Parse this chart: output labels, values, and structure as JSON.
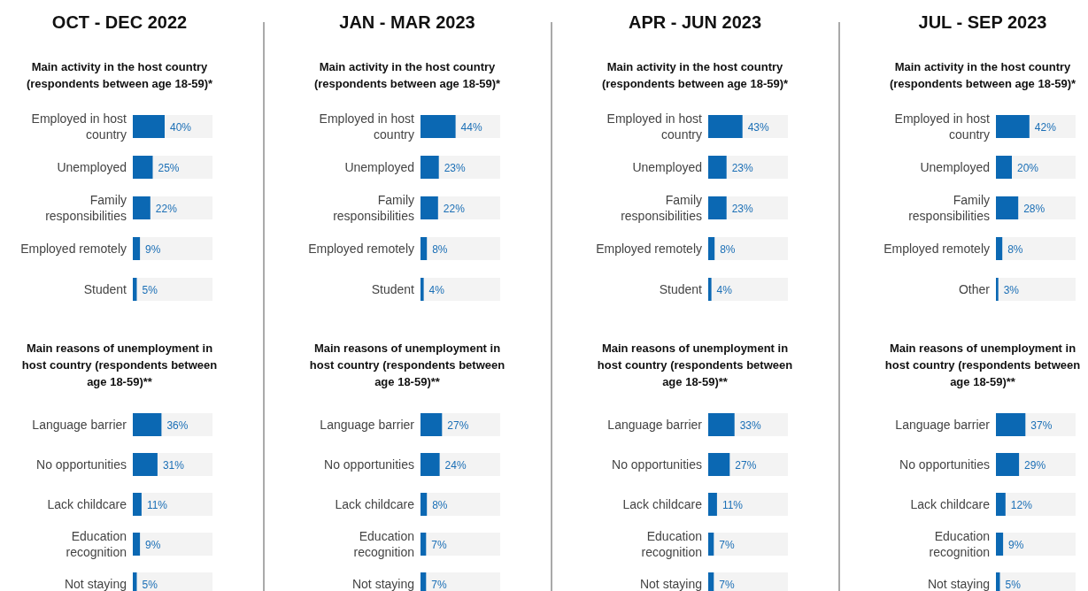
{
  "chart_data": [
    {
      "type": "bar",
      "orientation": "horizontal",
      "title": "OCT - DEC 2022",
      "subtitle": "Main activity in the host country (respondents between age 18-59)*",
      "categories": [
        "Employed in host country",
        "Unemployed",
        "Family responsibilities",
        "Employed remotely",
        "Student"
      ],
      "values": [
        40,
        25,
        22,
        9,
        5
      ],
      "value_labels": [
        "40%",
        "25%",
        "22%",
        "9%",
        "5%"
      ],
      "color": "#0b68b3",
      "xlim": [
        0,
        100
      ],
      "tick_labels": "y"
    },
    {
      "type": "bar",
      "orientation": "horizontal",
      "title": "JAN - MAR 2023",
      "subtitle": "Main activity in the host country (respondents between age 18-59)*",
      "categories": [
        "Employed in host country",
        "Unemployed",
        "Family responsibilities",
        "Employed remotely",
        "Student"
      ],
      "values": [
        44,
        23,
        22,
        8,
        4
      ],
      "value_labels": [
        "44%",
        "23%",
        "22%",
        "8%",
        "4%"
      ],
      "color": "#0b68b3",
      "xlim": [
        0,
        100
      ],
      "tick_labels": "y"
    },
    {
      "type": "bar",
      "orientation": "horizontal",
      "title": "APR - JUN 2023",
      "subtitle": "Main activity in the host country (respondents between age 18-59)*",
      "categories": [
        "Employed in host country",
        "Unemployed",
        "Family responsibilities",
        "Employed remotely",
        "Student"
      ],
      "values": [
        43,
        23,
        23,
        8,
        4
      ],
      "value_labels": [
        "43%",
        "23%",
        "23%",
        "8%",
        "4%"
      ],
      "color": "#0b68b3",
      "xlim": [
        0,
        100
      ],
      "tick_labels": "y"
    },
    {
      "type": "bar",
      "orientation": "horizontal",
      "title": "JUL - SEP 2023",
      "subtitle": "Main activity in the host country (respondents between age 18-59)*",
      "categories": [
        "Employed in host country",
        "Unemployed",
        "Family responsibilities",
        "Employed remotely",
        "Other"
      ],
      "values": [
        42,
        20,
        28,
        8,
        3
      ],
      "value_labels": [
        "42%",
        "20%",
        "28%",
        "8%",
        "3%"
      ],
      "color": "#0b68b3",
      "xlim": [
        0,
        100
      ],
      "tick_labels": "y"
    },
    {
      "type": "bar",
      "orientation": "horizontal",
      "title": "Main reasons of unemployment in host country (respondents between age 18-59)**",
      "categories": [
        "Language barrier",
        "No opportunities",
        "Lack childcare",
        "Education recognition",
        "Not staying"
      ],
      "values": [
        36,
        31,
        11,
        9,
        5
      ],
      "value_labels": [
        "36%",
        "31%",
        "11%",
        "9%",
        "5%"
      ],
      "color": "#0b68b3",
      "xlim": [
        0,
        100
      ],
      "tick_labels": "y"
    },
    {
      "type": "bar",
      "orientation": "horizontal",
      "title": "Main reasons of unemployment in host country (respondents between age 18-59)**",
      "categories": [
        "Language barrier",
        "No opportunities",
        "Lack childcare",
        "Education recognition",
        "Not staying"
      ],
      "values": [
        27,
        24,
        8,
        7,
        7
      ],
      "value_labels": [
        "27%",
        "24%",
        "8%",
        "7%",
        "7%"
      ],
      "color": "#0b68b3",
      "xlim": [
        0,
        100
      ],
      "tick_labels": "y"
    },
    {
      "type": "bar",
      "orientation": "horizontal",
      "title": "Main reasons of unemployment in host country (respondents between age 18-59)**",
      "categories": [
        "Language barrier",
        "No opportunities",
        "Lack childcare",
        "Education recognition",
        "Not staying"
      ],
      "values": [
        33,
        27,
        11,
        7,
        7
      ],
      "value_labels": [
        "33%",
        "27%",
        "11%",
        "7%",
        "7%"
      ],
      "color": "#0b68b3",
      "xlim": [
        0,
        100
      ],
      "tick_labels": "y"
    },
    {
      "type": "bar",
      "orientation": "horizontal",
      "title": "Main reasons of unemployment in host country (respondents between age 18-59)**",
      "categories": [
        "Language barrier",
        "No opportunities",
        "Lack childcare",
        "Education recognition",
        "Not staying"
      ],
      "values": [
        37,
        29,
        12,
        9,
        5
      ],
      "value_labels": [
        "37%",
        "29%",
        "12%",
        "9%",
        "5%"
      ],
      "color": "#0b68b3",
      "xlim": [
        0,
        100
      ],
      "tick_labels": "y"
    }
  ]
}
